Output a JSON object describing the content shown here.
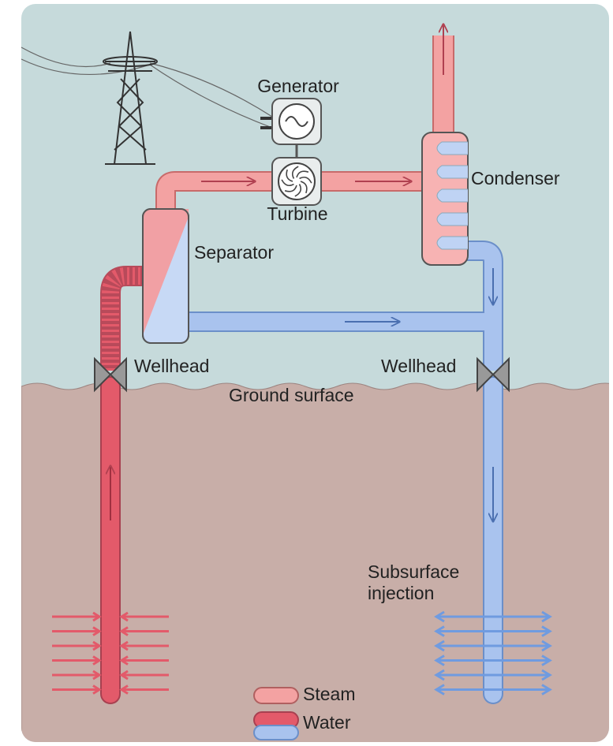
{
  "diagram": {
    "generator": {
      "label": "Generator"
    },
    "turbine": {
      "label": "Turbine"
    },
    "condenser": {
      "label": "Condenser"
    },
    "separator": {
      "label": "Separator"
    },
    "wellheads": [
      {
        "label": "Wellhead"
      },
      {
        "label": "Wellhead"
      }
    ],
    "ground": {
      "label": "Ground surface"
    },
    "injection": {
      "lines": [
        "Subsurface",
        "injection"
      ]
    },
    "legend": [
      {
        "label": "Steam"
      },
      {
        "label": "Water"
      }
    ]
  }
}
